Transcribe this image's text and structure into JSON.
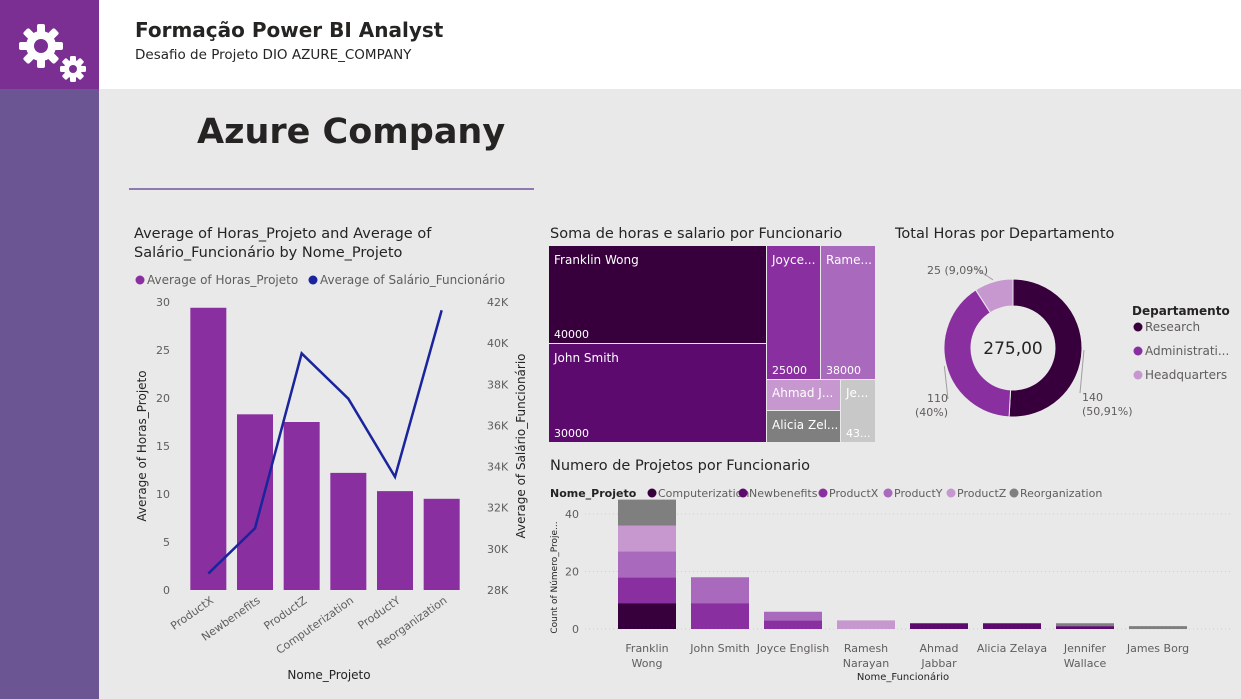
{
  "header": {
    "title": "Formação Power BI Analyst",
    "subtitle": "Desafio de Projeto DIO AZURE_COMPANY"
  },
  "logo": {
    "icon": "gears-icon"
  },
  "page": {
    "heading": "Azure Company"
  },
  "colors": {
    "dark": "#37003c",
    "purple": "#5c0a6e",
    "mid": "#8a2fa0",
    "light": "#a969bc",
    "pale": "#c797cf",
    "gray": "#7f7f7f",
    "navy": "#1a249c",
    "lightgray": "#c8c8c8"
  },
  "chart_data": [
    {
      "type": "bar",
      "title": "Average of Horas_Projeto and Average of Salário_Funcionário by Nome_Projeto",
      "xlabel": "Nome_Projeto",
      "ylabel": "Average of Horas_Projeto",
      "y2label": "Average of Salário_Funcionário",
      "categories": [
        "ProductX",
        "Newbenefits",
        "ProductZ",
        "Computerization",
        "ProductY",
        "Reorganization"
      ],
      "series": [
        {
          "name": "Average of Horas_Projeto",
          "type": "bar",
          "axis": "left",
          "values": [
            29.4,
            18.3,
            17.5,
            12.2,
            10.3,
            9.5
          ]
        },
        {
          "name": "Average of Salário_Funcionário",
          "type": "line",
          "axis": "right",
          "values": [
            28800,
            31000,
            39500,
            37300,
            33500,
            41600
          ]
        }
      ],
      "ylim": [
        0,
        30
      ],
      "y2lim": [
        28000,
        42000
      ],
      "yticks": [
        "0",
        "5",
        "10",
        "15",
        "20",
        "25",
        "30"
      ],
      "y2ticks": [
        "28K",
        "30K",
        "32K",
        "34K",
        "36K",
        "38K",
        "40K",
        "42K"
      ],
      "legend": "top-left"
    },
    {
      "type": "treemap",
      "title": "Soma de horas e salario por Funcionario",
      "tiles": [
        {
          "label": "Franklin Wong",
          "value": "40000"
        },
        {
          "label": "John Smith",
          "value": "30000"
        },
        {
          "label": "Joyce...",
          "value": "25000"
        },
        {
          "label": "Rame...",
          "value": "38000"
        },
        {
          "label": "Ahmad J...",
          "value": ""
        },
        {
          "label": "Je...",
          "value": "43..."
        },
        {
          "label": "Alicia Zel...",
          "value": ""
        }
      ]
    },
    {
      "type": "pie",
      "variant": "donut",
      "title": "Total Horas por Departamento",
      "center_label": "275,00",
      "legend_title": "Departamento",
      "legend": "right",
      "slices": [
        {
          "name": "Research",
          "value": 140,
          "label": "140",
          "pct": "(50,91%)"
        },
        {
          "name": "Administrati...",
          "value": 110,
          "label": "110",
          "pct": "(40%)"
        },
        {
          "name": "Headquarters",
          "value": 25,
          "label": "25 (9,09%)",
          "pct": ""
        }
      ]
    },
    {
      "type": "bar",
      "variant": "stacked",
      "title": "Numero de Projetos por Funcionario",
      "legend_title": "Nome_Projeto",
      "legend": "top-left",
      "xlabel": "Nome_Funcionário",
      "ylabel": "Count of Número_Proje...",
      "ylim": [
        0,
        40
      ],
      "yticks": [
        "0",
        "20",
        "40"
      ],
      "categories": [
        "Franklin Wong",
        "John Smith",
        "Joyce English",
        "Ramesh Narayan",
        "Ahmad Jabbar",
        "Alicia Zelaya",
        "Jennifer Wallace",
        "James Borg"
      ],
      "series": [
        {
          "name": "Computerization",
          "values": [
            9,
            0,
            0,
            0,
            0,
            0,
            0,
            0
          ]
        },
        {
          "name": "Newbenefits",
          "values": [
            0,
            0,
            0,
            0,
            2,
            2,
            1,
            0
          ]
        },
        {
          "name": "ProductX",
          "values": [
            9,
            9,
            3,
            0,
            0,
            0,
            0,
            0
          ]
        },
        {
          "name": "ProductY",
          "values": [
            9,
            9,
            3,
            0,
            0,
            0,
            0,
            0
          ]
        },
        {
          "name": "ProductZ",
          "values": [
            9,
            0,
            0,
            3,
            0,
            0,
            0,
            0
          ]
        },
        {
          "name": "Reorganization",
          "values": [
            9,
            0,
            0,
            0,
            0,
            0,
            1,
            1
          ]
        }
      ]
    }
  ]
}
